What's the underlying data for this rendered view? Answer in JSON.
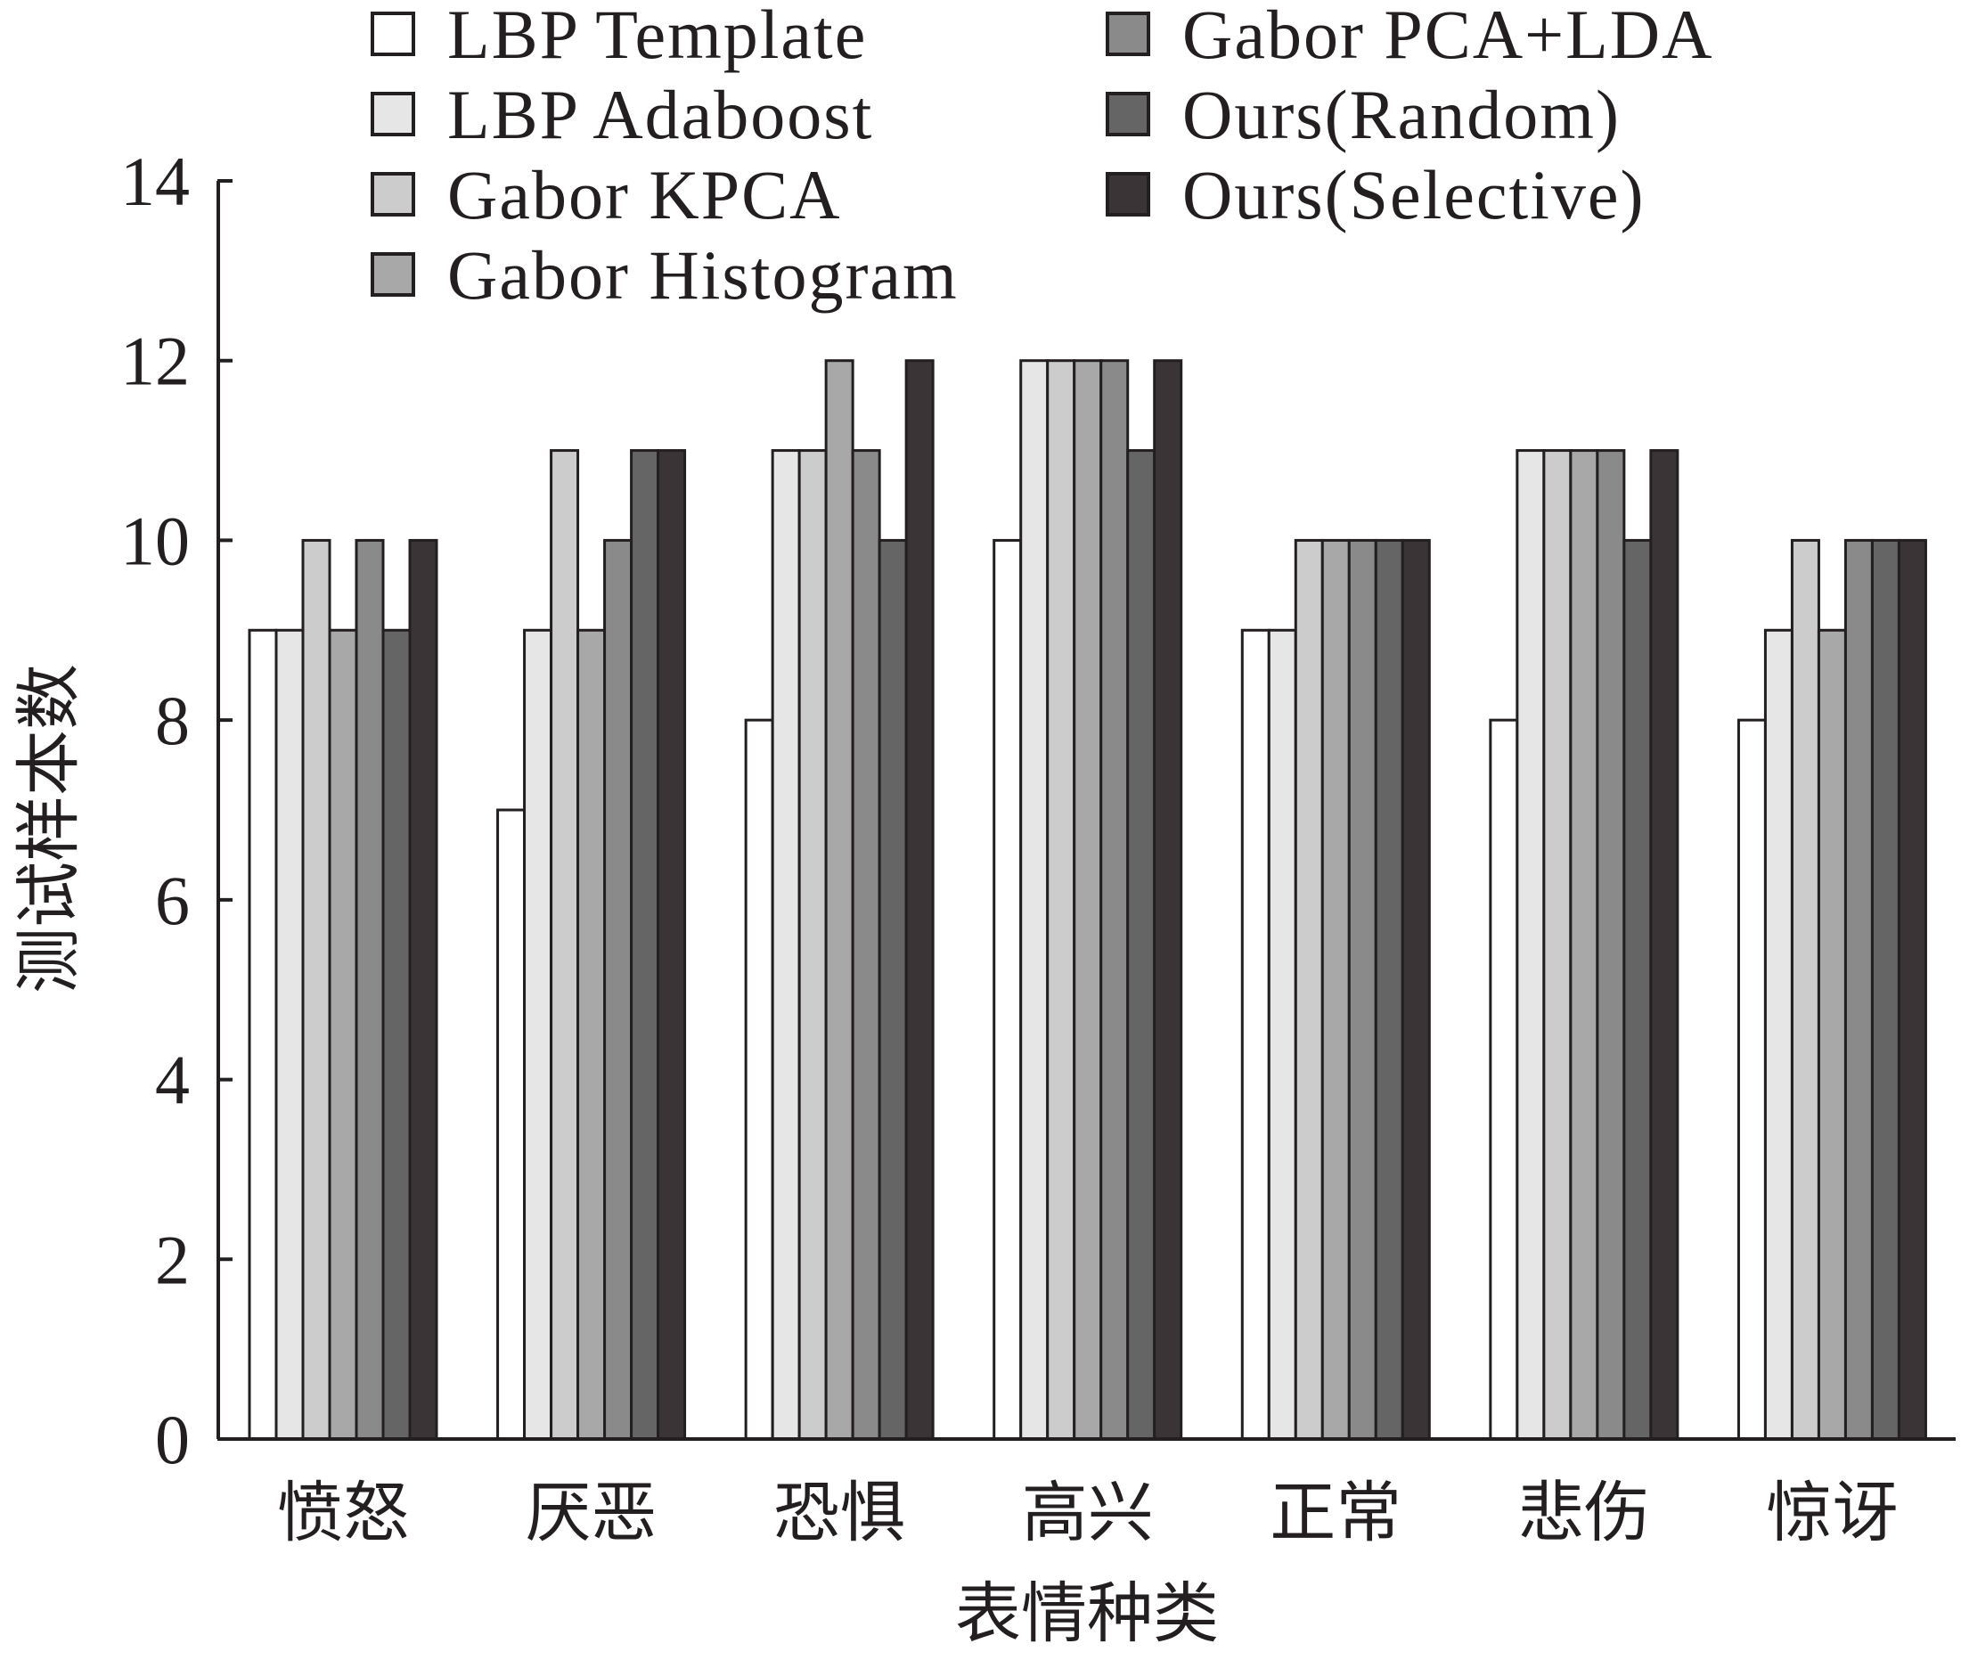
{
  "chart_data": {
    "type": "bar",
    "title": "",
    "xlabel": "表情种类",
    "ylabel": "测试样本数",
    "ylim": [
      0,
      14
    ],
    "yticks": [
      0,
      2,
      4,
      6,
      8,
      10,
      12,
      14
    ],
    "categories": [
      "愤怒",
      "厌恶",
      "恐惧",
      "高兴",
      "正常",
      "悲伤",
      "惊讶"
    ],
    "legend_position": "top",
    "grid": false,
    "series": [
      {
        "name": "LBP Template",
        "color": "#ffffff",
        "values": [
          9,
          7,
          8,
          10,
          9,
          8,
          8
        ]
      },
      {
        "name": "LBP Adaboost",
        "color": "#e6e6e6",
        "values": [
          9,
          9,
          11,
          12,
          9,
          11,
          9
        ]
      },
      {
        "name": "Gabor KPCA",
        "color": "#cccccc",
        "values": [
          10,
          11,
          11,
          12,
          10,
          11,
          10
        ]
      },
      {
        "name": "Gabor Histogram",
        "color": "#a8a8a8",
        "values": [
          9,
          9,
          12,
          12,
          10,
          11,
          9
        ]
      },
      {
        "name": "Gabor PCA+LDA",
        "color": "#8a8a8a",
        "values": [
          10,
          10,
          11,
          12,
          10,
          11,
          10
        ]
      },
      {
        "name": "Ours(Random)",
        "color": "#656565",
        "values": [
          9,
          11,
          10,
          11,
          10,
          10,
          10
        ]
      },
      {
        "name": "Ours(Selective)",
        "color": "#3a3436",
        "values": [
          10,
          11,
          12,
          12,
          10,
          11,
          10
        ]
      }
    ]
  }
}
